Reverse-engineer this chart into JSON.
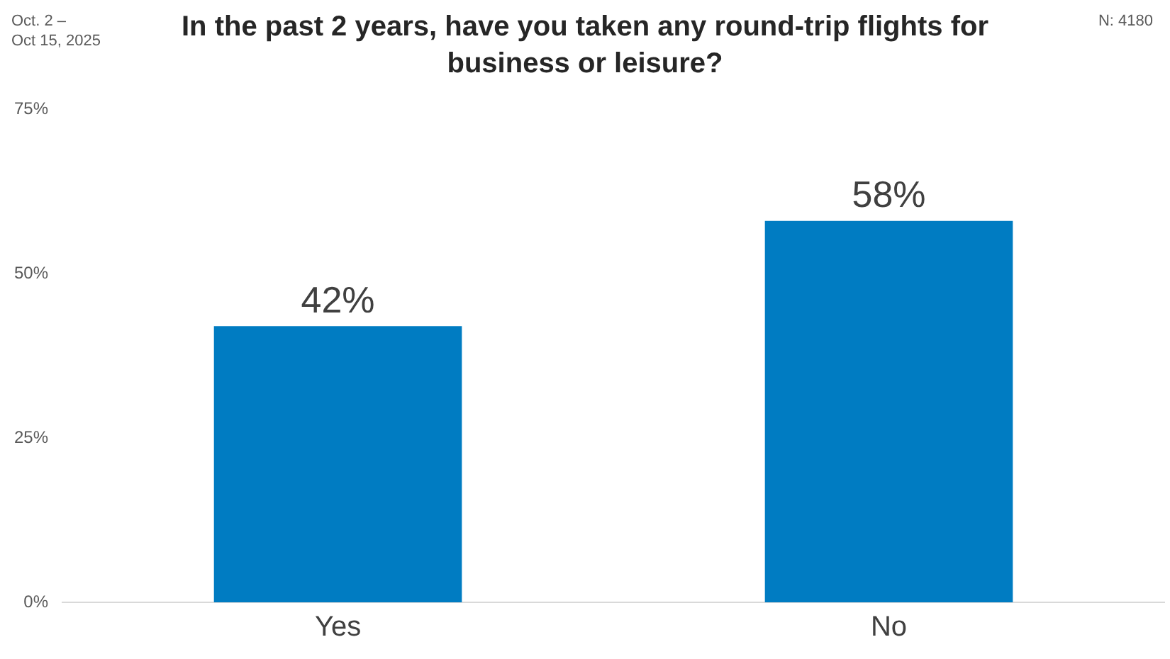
{
  "chart_data": {
    "type": "bar",
    "title": "In the past 2 years, have you taken any round-trip flights for business or leisure?",
    "annotations": [
      "Oct. 2 –\nOct 15, 2025",
      "N: 4180"
    ],
    "categories": [
      "Yes",
      "No"
    ],
    "values": [
      42,
      58
    ],
    "value_labels": [
      "42%",
      "58%"
    ],
    "color": "#007cc2",
    "ylim": [
      0,
      75
    ],
    "yticks": [
      {
        "value": 0,
        "label": "0%"
      },
      {
        "value": 25,
        "label": "25%"
      },
      {
        "value": 50,
        "label": "50%"
      },
      {
        "value": 75,
        "label": "75%"
      }
    ],
    "grid": false,
    "legend": false
  }
}
